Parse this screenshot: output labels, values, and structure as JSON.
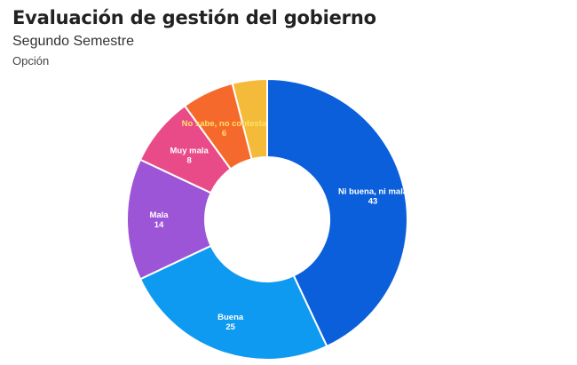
{
  "header": {
    "title": "Evaluación de gestión del gobierno",
    "subtitle": "Segundo Semestre",
    "group_label": "Opción"
  },
  "chart_data": {
    "type": "pie",
    "variant": "donut",
    "title": "Evaluación de gestión del gobierno",
    "subtitle": "Segundo Semestre",
    "legend_title": "Opción",
    "start_angle_deg": 0,
    "direction": "clockwise",
    "slices": [
      {
        "label": "Ni buena, ni mala",
        "value": 43,
        "color": "#0b5fdb",
        "label_color": "#ffffff"
      },
      {
        "label": "Buena",
        "value": 25,
        "color": "#0d9af0",
        "label_color": "#ffffff"
      },
      {
        "label": "Mala",
        "value": 14,
        "color": "#9b55d6",
        "label_color": "#ffffff"
      },
      {
        "label": "Muy mala",
        "value": 8,
        "color": "#e84b88",
        "label_color": "#ffffff"
      },
      {
        "label": "No sabe, no contesta",
        "value": 6,
        "color": "#f56a2c",
        "label_color": "#ffe066"
      },
      {
        "label": "",
        "value": 4,
        "color": "#f4bb3a",
        "label_color": "#ffffff"
      }
    ]
  }
}
